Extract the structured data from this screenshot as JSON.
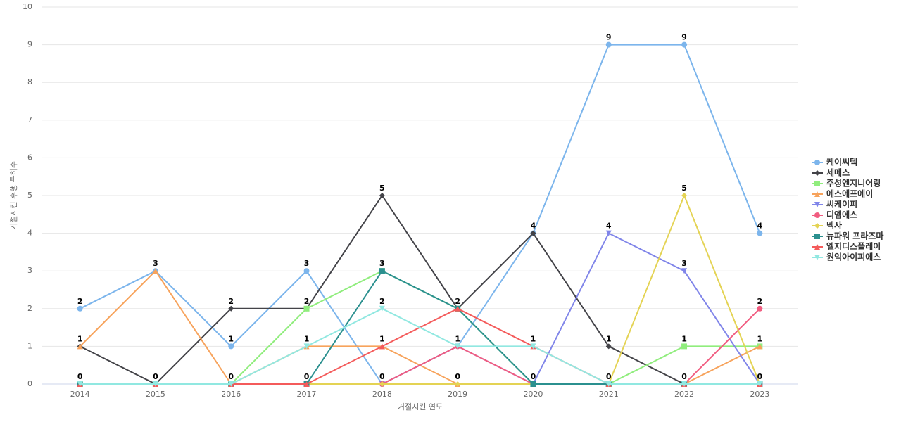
{
  "chart_data": {
    "type": "line",
    "x_label": "거절시킨 연도",
    "y_label": "거절시킨 후행 특허수",
    "categories": [
      "2014",
      "2015",
      "2016",
      "2017",
      "2018",
      "2019",
      "2020",
      "2021",
      "2022",
      "2023"
    ],
    "ylim": [
      0,
      10
    ],
    "yticks": [
      0,
      1,
      2,
      3,
      4,
      5,
      6,
      7,
      8,
      9,
      10
    ],
    "grid": true,
    "legend": "right",
    "series": [
      {
        "name": "케이씨텍",
        "color": "#7cb5ec",
        "marker": "circle",
        "values": [
          2,
          3,
          1,
          3,
          0,
          1,
          4,
          9,
          9,
          4
        ]
      },
      {
        "name": "세메스",
        "color": "#434348",
        "marker": "diamond",
        "values": [
          1,
          0,
          2,
          2,
          5,
          2,
          4,
          1,
          0,
          0
        ]
      },
      {
        "name": "주성엔지니어링",
        "color": "#90ed7d",
        "marker": "square",
        "values": [
          0,
          0,
          0,
          2,
          3,
          2,
          0,
          0,
          1,
          1
        ]
      },
      {
        "name": "에스에프에이",
        "color": "#f7a35c",
        "marker": "triangle",
        "values": [
          1,
          3,
          0,
          1,
          1,
          0,
          0,
          0,
          0,
          1
        ]
      },
      {
        "name": "씨케이피",
        "color": "#8085e9",
        "marker": "triangle-down",
        "values": [
          0,
          0,
          0,
          0,
          0,
          1,
          0,
          4,
          3,
          0
        ]
      },
      {
        "name": "디엠에스",
        "color": "#f15c80",
        "marker": "circle",
        "values": [
          0,
          0,
          0,
          0,
          0,
          1,
          0,
          0,
          0,
          2
        ]
      },
      {
        "name": "넥사",
        "color": "#e4d354",
        "marker": "diamond",
        "values": [
          0,
          0,
          0,
          0,
          0,
          0,
          0,
          0,
          5,
          0
        ]
      },
      {
        "name": "뉴파워 프라즈마",
        "color": "#2b908f",
        "marker": "square",
        "values": [
          0,
          0,
          0,
          0,
          3,
          2,
          0,
          0,
          0,
          0
        ]
      },
      {
        "name": "엘지디스플레이",
        "color": "#f45b5b",
        "marker": "triangle",
        "values": [
          0,
          0,
          0,
          0,
          1,
          2,
          1,
          0,
          0,
          0
        ]
      },
      {
        "name": "원익아이피에스",
        "color": "#91e8e1",
        "marker": "triangle-down",
        "values": [
          0,
          0,
          0,
          1,
          2,
          1,
          1,
          0,
          0,
          0
        ]
      }
    ]
  }
}
